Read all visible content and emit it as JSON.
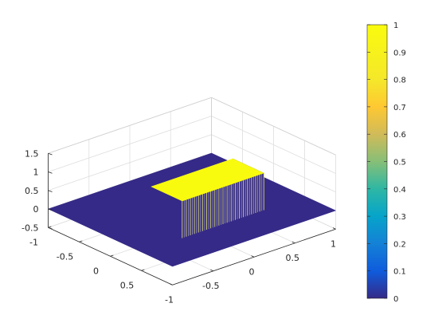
{
  "chart_data": {
    "type": "surface",
    "title": "",
    "xlabel": "",
    "ylabel": "",
    "zlabel": "",
    "description_values": {
      "plateau_height": 1,
      "floor_height": 0,
      "plateau_x_range": [
        -0.5,
        0.5
      ],
      "plateau_y_range": [
        0,
        0.5
      ]
    },
    "x_ticks": [
      "-1",
      "-0.5",
      "0",
      "0.5",
      "1"
    ],
    "y_ticks": [
      "-1",
      "-0.5",
      "0",
      "0.5"
    ],
    "z_ticks": [
      "-0.5",
      "0",
      "0.5",
      "1",
      "1.5"
    ],
    "xlim": [
      -1,
      1
    ],
    "ylim": [
      -1,
      1
    ],
    "zlim": [
      -0.5,
      1.5
    ],
    "colorbar": {
      "ticks": [
        "0",
        "0.1",
        "0.2",
        "0.3",
        "0.4",
        "0.5",
        "0.6",
        "0.7",
        "0.8",
        "0.9",
        "1"
      ],
      "range": [
        0,
        1
      ],
      "colormap": "parula"
    },
    "grid": true,
    "colors": {
      "floor": "#352A87",
      "top": "#F9FB0E",
      "edge_low": "#352A87",
      "edge_high": "#F9FB0E"
    }
  }
}
